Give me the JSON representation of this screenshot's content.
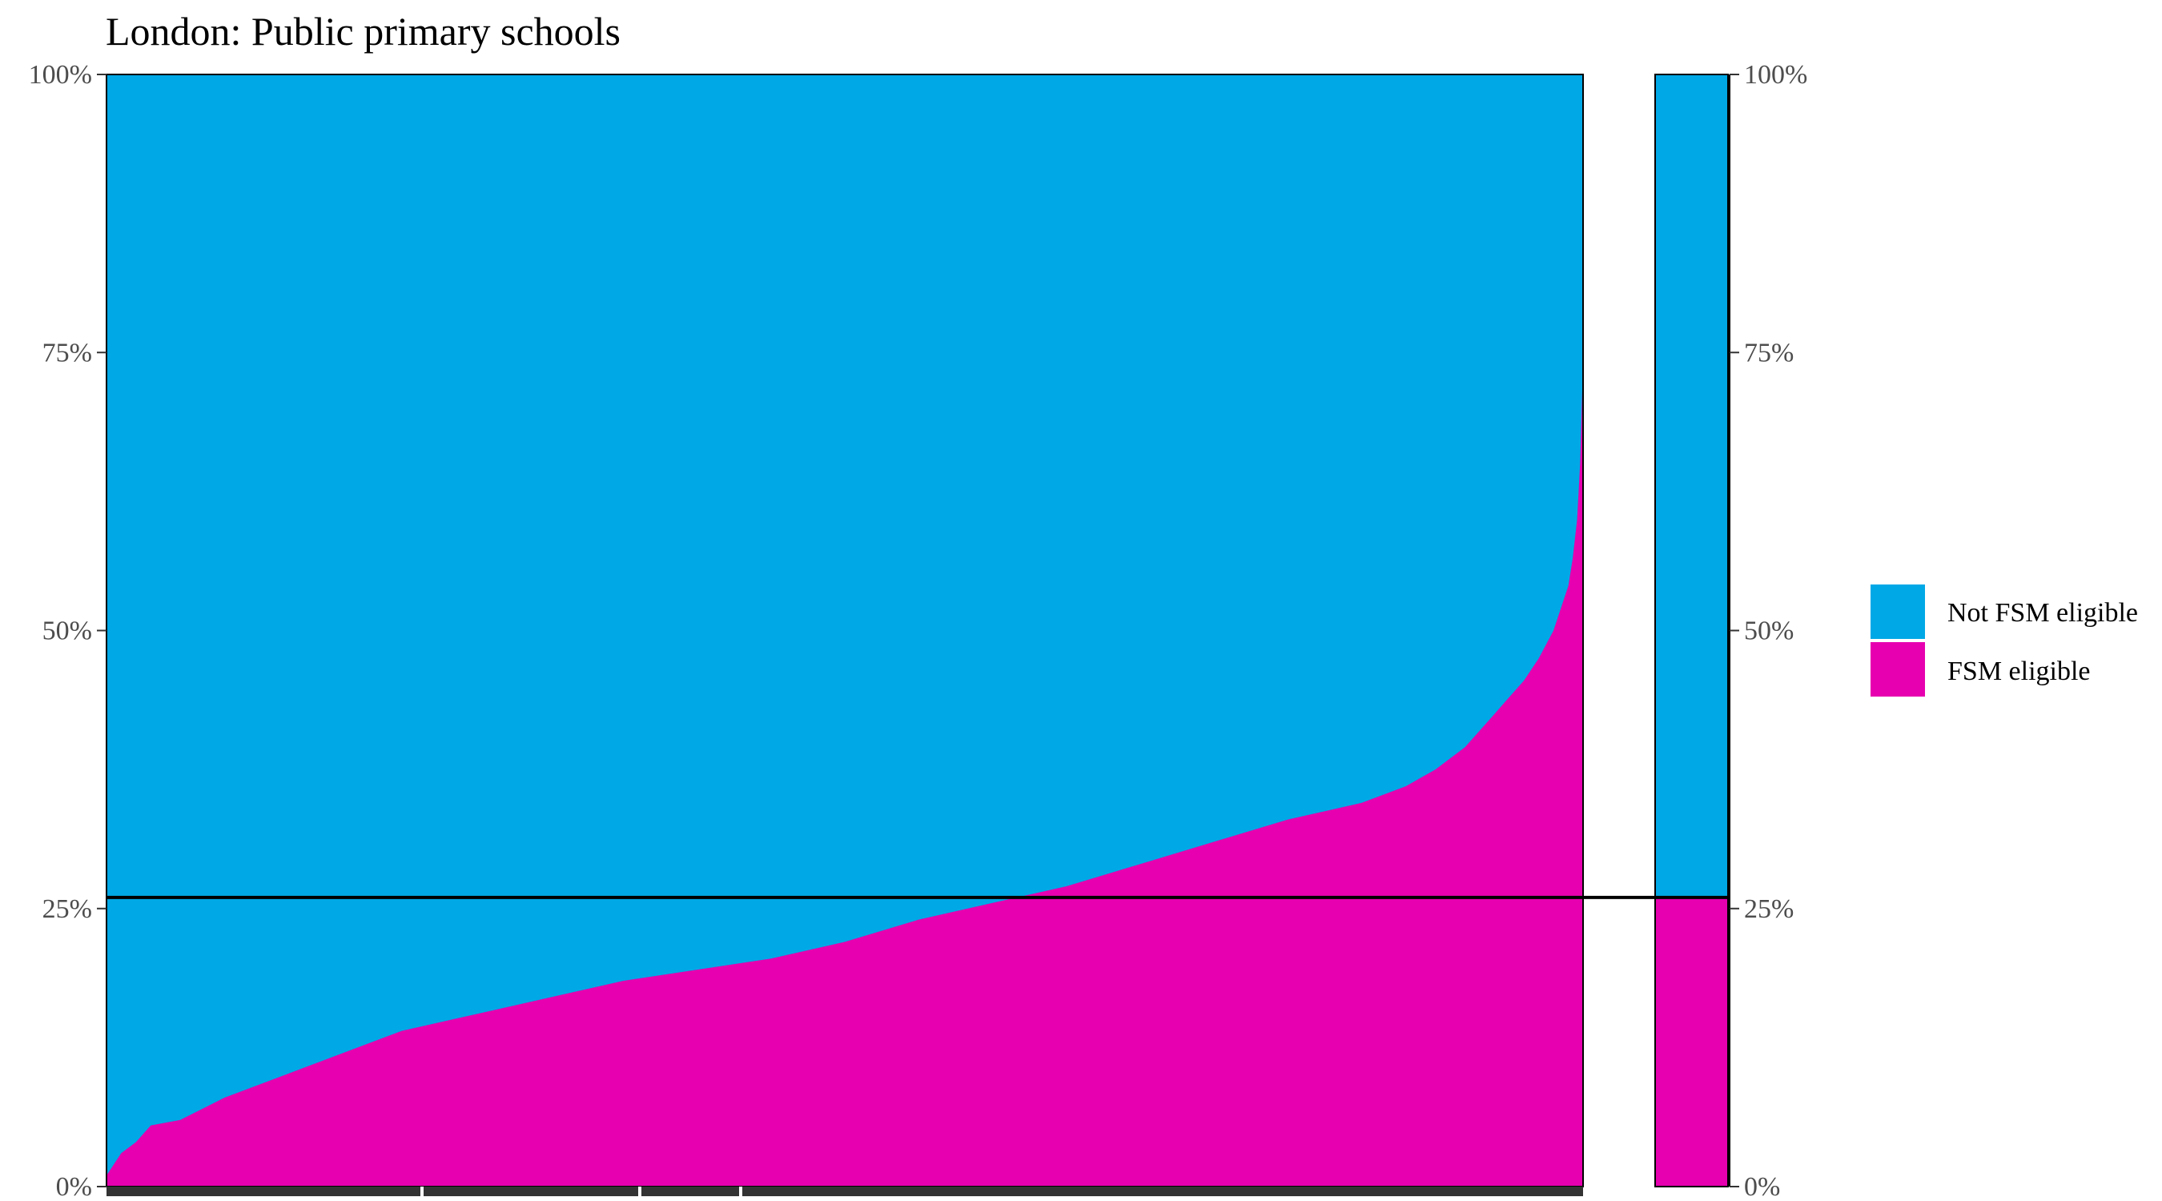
{
  "chart_data": {
    "type": "area",
    "title": "London: Public primary schools",
    "xlabel": "",
    "ylabel": "",
    "ylim": [
      0,
      1
    ],
    "y_ticks": [
      "0%",
      "25%",
      "50%",
      "75%",
      "100%"
    ],
    "y_tick_values": [
      0,
      0.25,
      0.5,
      0.75,
      1
    ],
    "grid": false,
    "legend_position": "right",
    "colors": {
      "not_fsm": "#00A8E6",
      "fsm": "#E600AF",
      "reference_line": "#000000"
    },
    "series": [
      {
        "name": "Not FSM eligible",
        "color": "#00A8E6"
      },
      {
        "name": "FSM eligible",
        "color": "#E600AF"
      }
    ],
    "fsm_share_by_school_percentile": {
      "x": [
        0,
        1,
        2,
        3,
        5,
        8,
        12,
        15,
        18,
        20,
        25,
        30,
        35,
        40,
        45,
        50,
        55,
        60,
        65,
        70,
        75,
        80,
        85,
        88,
        90,
        92,
        94,
        95,
        96,
        97,
        98,
        98.5,
        99,
        99.3,
        99.6,
        99.8,
        100
      ],
      "y": [
        0.01,
        0.03,
        0.04,
        0.055,
        0.06,
        0.08,
        0.1,
        0.115,
        0.13,
        0.14,
        0.155,
        0.17,
        0.185,
        0.195,
        0.205,
        0.22,
        0.24,
        0.255,
        0.27,
        0.29,
        0.31,
        0.33,
        0.345,
        0.36,
        0.375,
        0.395,
        0.425,
        0.44,
        0.455,
        0.475,
        0.5,
        0.52,
        0.54,
        0.565,
        0.6,
        0.65,
        0.74
      ]
    },
    "overall_fsm_share": 0.26,
    "overall_bar": {
      "fsm": 0.26,
      "not_fsm": 0.74
    }
  }
}
